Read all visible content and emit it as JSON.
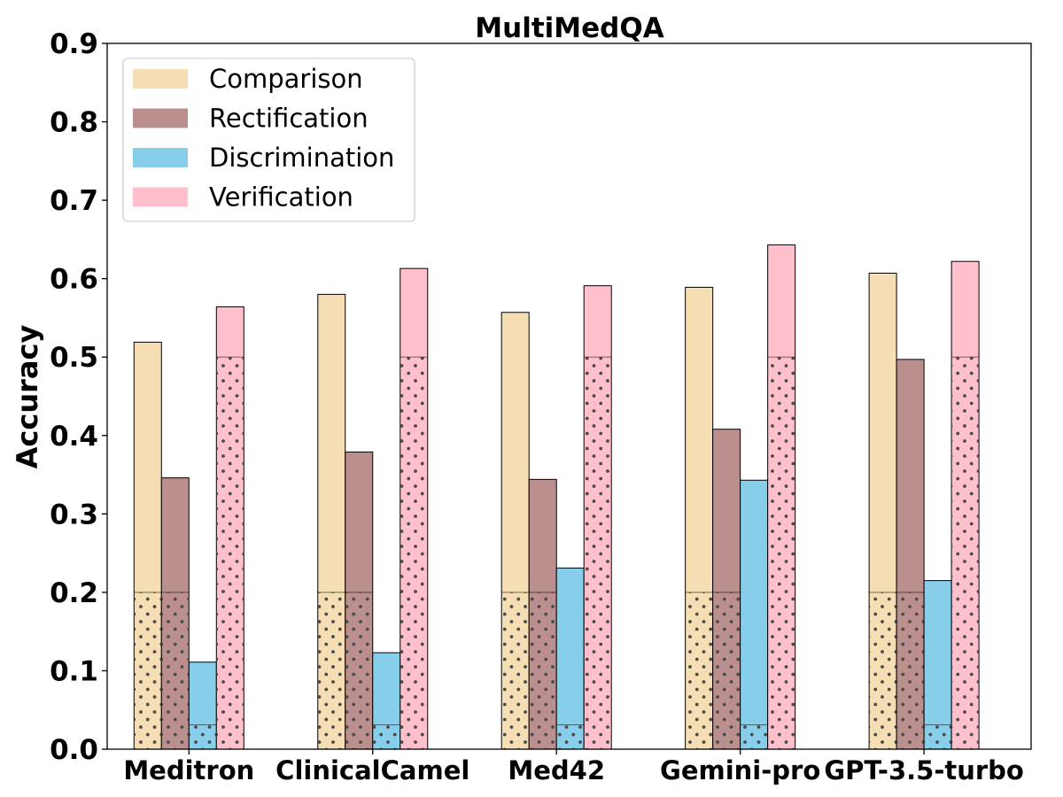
{
  "chart_data": {
    "type": "bar",
    "title": "MultiMedQA",
    "xlabel": "",
    "ylabel": "Accuracy",
    "ylim": [
      0,
      0.9
    ],
    "yticks": [
      "0.0",
      "0.1",
      "0.2",
      "0.3",
      "0.4",
      "0.5",
      "0.6",
      "0.7",
      "0.8",
      "0.9"
    ],
    "categories": [
      "Meditron",
      "ClinicalCamel",
      "Med42",
      "Gemini-pro",
      "GPT-3.5-turbo"
    ],
    "series": [
      {
        "name": "Comparison",
        "color": "#F5DEB3",
        "values": [
          0.519,
          0.58,
          0.557,
          0.589,
          0.607
        ],
        "baseline": 0.2
      },
      {
        "name": "Rectification",
        "color": "#BC8F8F",
        "values": [
          0.346,
          0.379,
          0.344,
          0.408,
          0.497
        ],
        "baseline": 0.2
      },
      {
        "name": "Discrimination",
        "color": "#87CEEB",
        "values": [
          0.111,
          0.123,
          0.231,
          0.343,
          0.215
        ],
        "baseline": 0.031
      },
      {
        "name": "Verification",
        "color": "#FFC0CB",
        "values": [
          0.564,
          0.613,
          0.591,
          0.643,
          0.622
        ],
        "baseline": 0.5
      }
    ],
    "baseline_pattern": "dotted",
    "grid": false,
    "legend_position": "top-left"
  }
}
